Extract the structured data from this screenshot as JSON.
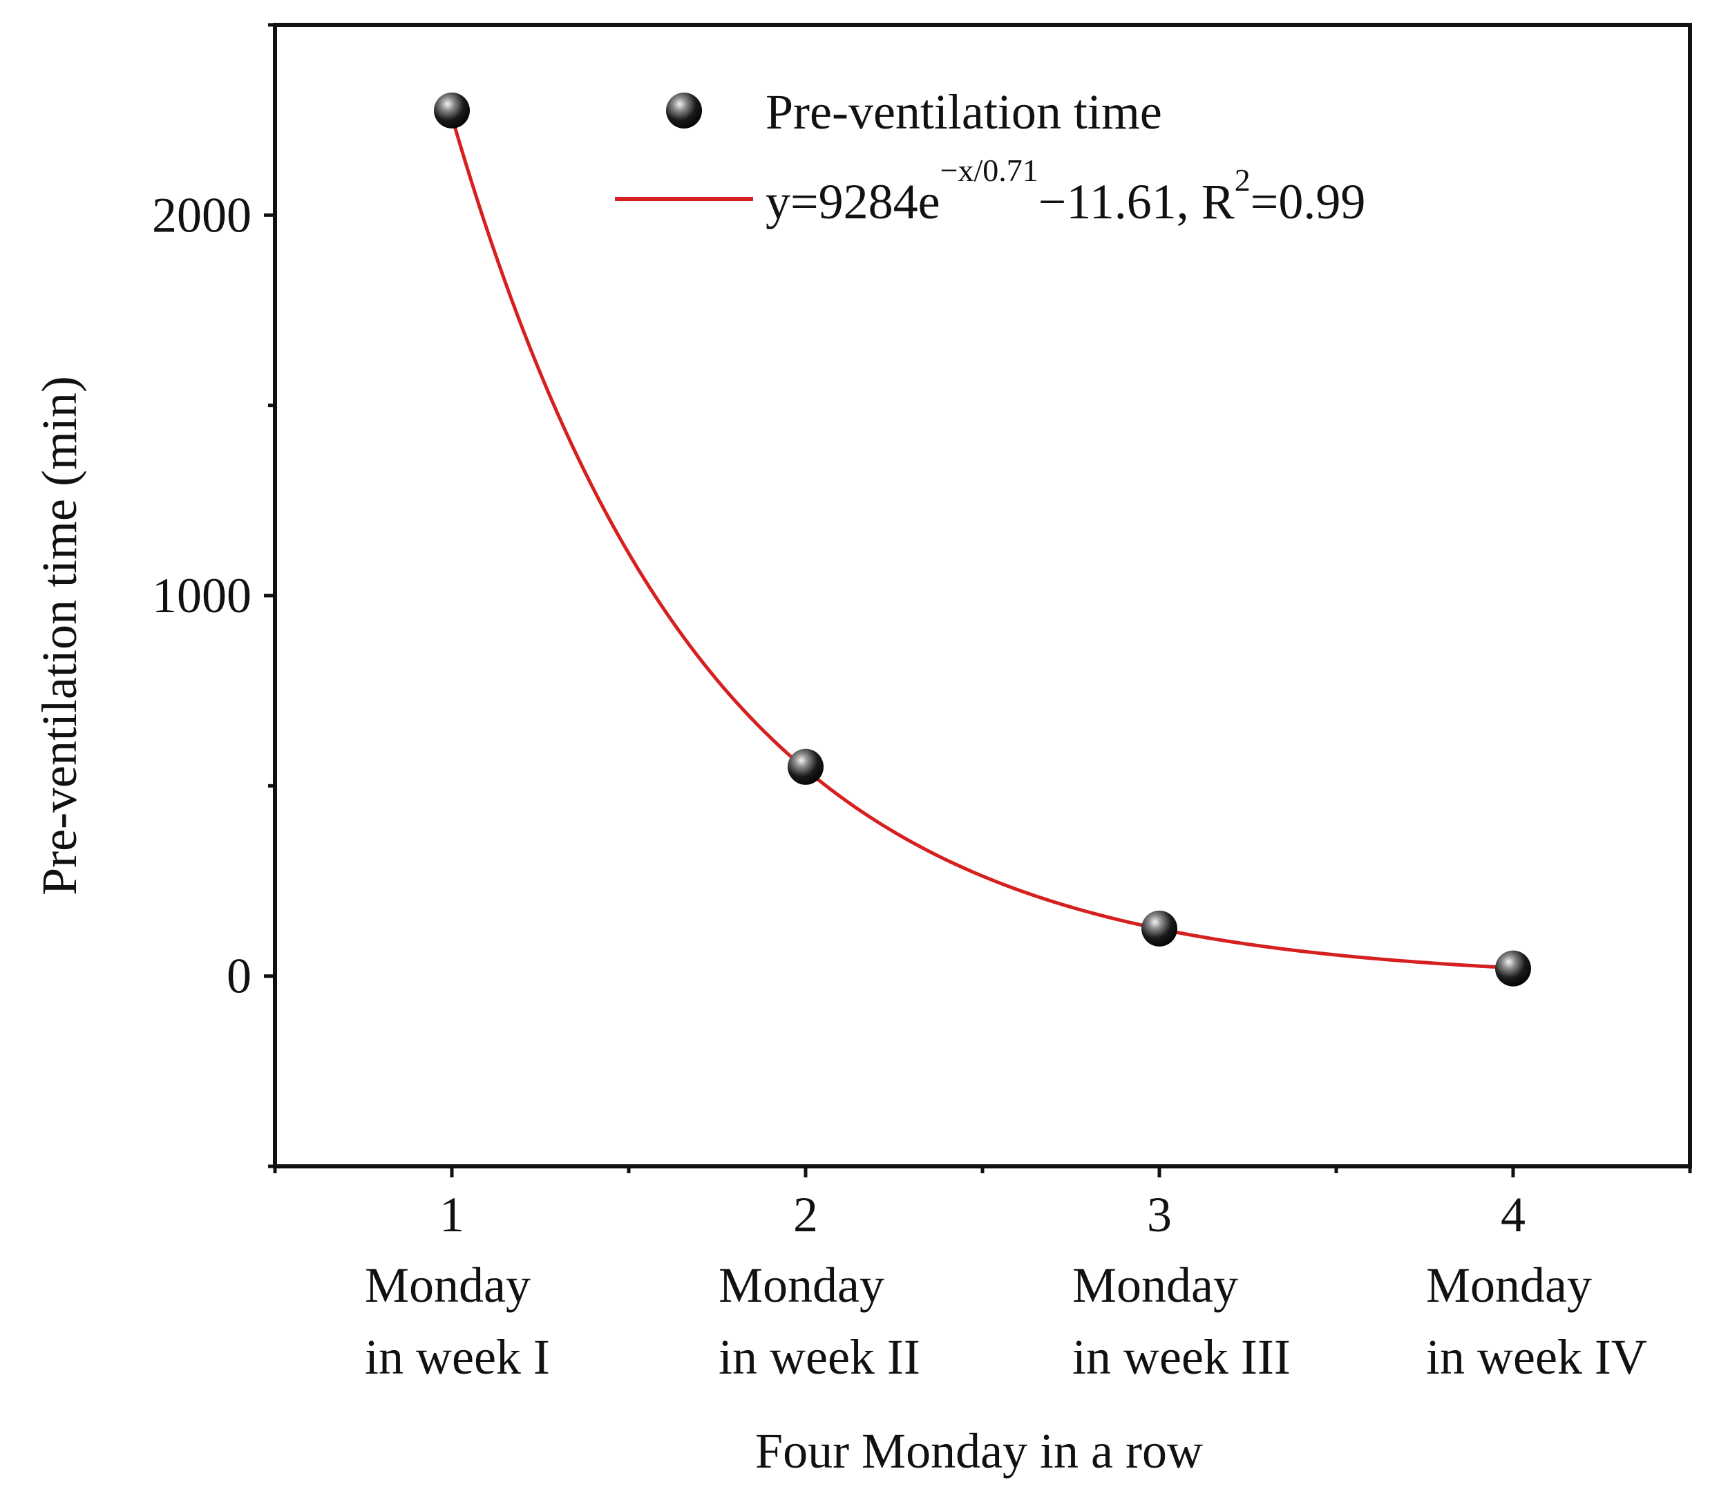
{
  "chart_data": {
    "type": "scatter",
    "xlabel": "Four Monday in a row",
    "ylabel": "Pre-ventilation time (min)",
    "xlim": [
      0.5,
      4.5
    ],
    "ylim": [
      -500,
      2500
    ],
    "x_ticks": [
      1,
      2,
      3,
      4
    ],
    "x_tick_labels": [
      "1",
      "2",
      "3",
      "4"
    ],
    "x_category_labels": [
      [
        "Monday",
        "in week I"
      ],
      [
        "Monday",
        "in week II"
      ],
      [
        "Monday",
        "in week III"
      ],
      [
        "Monday",
        "in week IV"
      ]
    ],
    "y_ticks": [
      0,
      1000,
      2000
    ],
    "y_tick_labels": [
      "0",
      "1000",
      "2000"
    ],
    "series": [
      {
        "name": "Pre-ventilation time",
        "kind": "scatter",
        "x": [
          1,
          2,
          3,
          4
        ],
        "y": [
          2275,
          550,
          125,
          20
        ]
      }
    ],
    "fit": {
      "name": "y=9284e^(−x/0.71)−11.61, R²=0.99",
      "kind": "line",
      "a": 9284,
      "tau": 0.71,
      "c": -11.61,
      "r2": 0.99,
      "x_range": [
        1,
        4
      ],
      "color": "#d62020"
    },
    "legend": {
      "placement": "top-right",
      "entries": [
        {
          "type": "marker",
          "text": "Pre-ventilation time"
        },
        {
          "type": "line",
          "eq_main": "y=9284e",
          "eq_exp": "−x/0.71",
          "eq_rest": "−11.61, R",
          "eq_r2_sup": "2",
          "eq_end": "=0.99"
        }
      ]
    },
    "grid": false
  }
}
